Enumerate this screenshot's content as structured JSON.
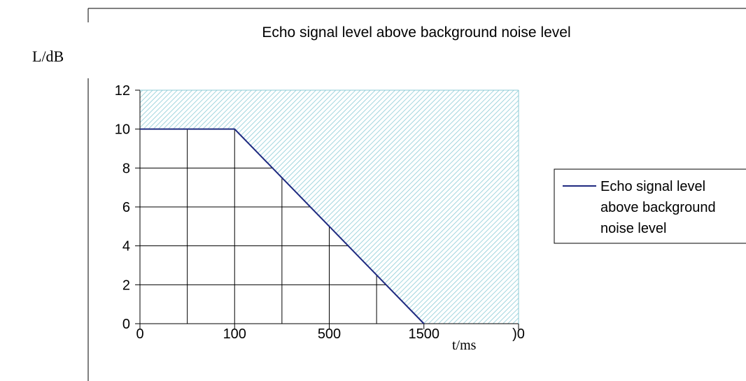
{
  "chart_data": {
    "type": "line",
    "title": "Echo signal level above background noise level",
    "ylabel": "L/dB",
    "xlabel": "t/ms",
    "x_tick_labels": [
      "0",
      "100",
      "500",
      "1500",
      ")0"
    ],
    "y_ticks": [
      0,
      2,
      4,
      6,
      8,
      10,
      12
    ],
    "ylim": [
      0,
      12
    ],
    "grid": true,
    "legend_position": "right",
    "series": [
      {
        "name": "Echo signal level above background noise level",
        "legend_lines": [
          "Echo signal level",
          "above background",
          "noise level"
        ],
        "color": "#1f2a80",
        "points": [
          {
            "x": "0",
            "y": 10
          },
          {
            "x": "100",
            "y": 10
          },
          {
            "x": "1500",
            "y": 0
          }
        ]
      }
    ],
    "shaded_region": {
      "description_color": "#9fd3dc",
      "bounded_below_by_series": true
    }
  }
}
